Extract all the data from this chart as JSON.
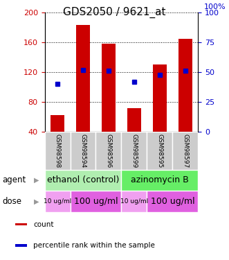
{
  "title": "GDS2050 / 9621_at",
  "samples": [
    "GSM98598",
    "GSM98594",
    "GSM98596",
    "GSM98599",
    "GSM98595",
    "GSM98597"
  ],
  "counts": [
    62,
    183,
    158,
    72,
    130,
    165
  ],
  "percentiles": [
    40,
    52,
    51,
    42,
    48,
    51
  ],
  "ylim_left": [
    40,
    200
  ],
  "ylim_right": [
    0,
    100
  ],
  "yticks_left": [
    40,
    80,
    120,
    160,
    200
  ],
  "yticks_right": [
    0,
    25,
    50,
    75,
    100
  ],
  "bar_color": "#cc0000",
  "dot_color": "#0000cc",
  "bar_width": 0.55,
  "agents": [
    {
      "label": "ethanol (control)",
      "color": "#b0eeb0",
      "span": [
        0,
        3
      ]
    },
    {
      "label": "azinomycin B",
      "color": "#66ee66",
      "span": [
        3,
        6
      ]
    }
  ],
  "doses": [
    {
      "label": "10 ug/ml",
      "color": "#f0a0f0",
      "span": [
        0,
        1
      ],
      "fontsize": 6.5
    },
    {
      "label": "100 ug/ml",
      "color": "#e060e0",
      "span": [
        1,
        3
      ],
      "fontsize": 9
    },
    {
      "label": "10 ug/ml",
      "color": "#f0a0f0",
      "span": [
        3,
        4
      ],
      "fontsize": 6.5
    },
    {
      "label": "100 ug/ml",
      "color": "#e060e0",
      "span": [
        4,
        6
      ],
      "fontsize": 9
    }
  ],
  "legend_items": [
    {
      "label": "count",
      "color": "#cc0000"
    },
    {
      "label": "percentile rank within the sample",
      "color": "#0000cc"
    }
  ],
  "title_fontsize": 11,
  "tick_label_fontsize": 8,
  "agent_fontsize": 9,
  "left_tick_color": "#cc0000",
  "right_tick_color": "#0000cc",
  "sample_bg_color": "#cccccc",
  "arrow_color": "#999999"
}
